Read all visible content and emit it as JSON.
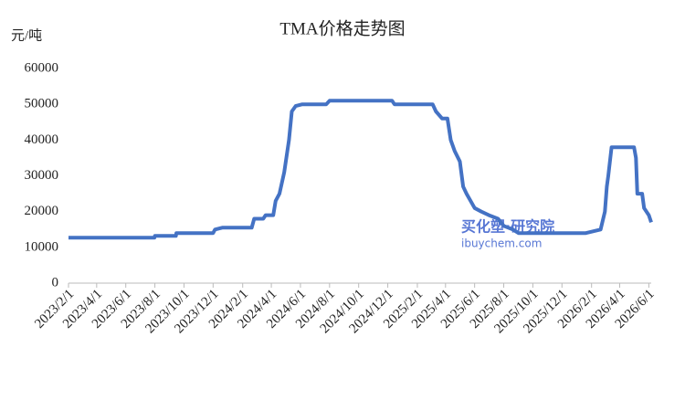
{
  "chart_data": {
    "type": "line",
    "title": "TMA价格走势图",
    "y_label": "元/吨",
    "watermark": [
      "买化塑·研究院",
      "ibuychem.com"
    ],
    "x": [
      "2023/2/1",
      "2023/7/31",
      "2023/8/1",
      "2023/9/14",
      "2023/9/15",
      "2023/12/1",
      "2023/12/5",
      "2023/12/20",
      "2024/2/20",
      "2024/2/25",
      "2024/3/15",
      "2024/3/20",
      "2024/4/5",
      "2024/4/10",
      "2024/4/18",
      "2024/4/28",
      "2024/5/8",
      "2024/5/14",
      "2024/5/22",
      "2024/6/5",
      "2024/7/25",
      "2024/8/1",
      "2024/12/10",
      "2024/12/15",
      "2025/3/5",
      "2025/3/12",
      "2025/3/25",
      "2025/4/5",
      "2025/4/12",
      "2025/4/20",
      "2025/5/1",
      "2025/5/8",
      "2025/5/15",
      "2025/6/1",
      "2025/6/15",
      "2025/7/1",
      "2025/7/20",
      "2025/8/1",
      "2025/8/20",
      "2025/9/1",
      "2026/1/20",
      "2026/2/20",
      "2026/3/1",
      "2026/3/5",
      "2026/3/8",
      "2026/3/15",
      "2026/5/1",
      "2026/5/5",
      "2026/5/8",
      "2026/5/18",
      "2026/5/22",
      "2026/6/1",
      "2026/6/6"
    ],
    "series": [
      {
        "name": "TMA",
        "color": "#4472c4",
        "values": [
          12700,
          12700,
          13200,
          13200,
          14000,
          14000,
          15000,
          15500,
          15500,
          18000,
          18000,
          19000,
          19000,
          23000,
          25000,
          31000,
          40000,
          48000,
          49500,
          50000,
          50000,
          51000,
          51000,
          50000,
          50000,
          48000,
          46000,
          46000,
          40000,
          37000,
          34000,
          27000,
          25000,
          21000,
          20000,
          19000,
          18000,
          16000,
          15000,
          14000,
          14000,
          15000,
          20000,
          27000,
          30000,
          38000,
          38000,
          35000,
          25000,
          25000,
          21000,
          19000,
          17000
        ]
      }
    ],
    "xlim": [
      "2023/2/1",
      "2026/6/6"
    ],
    "xticks": [
      "2023/2/1",
      "2023/4/1",
      "2023/6/1",
      "2023/8/1",
      "2023/10/1",
      "2023/12/1",
      "2024/2/1",
      "2024/4/1",
      "2024/6/1",
      "2024/8/1",
      "2024/10/1",
      "2024/12/1",
      "2025/2/1",
      "2025/4/1",
      "2025/6/1",
      "2025/8/1",
      "2025/10/1",
      "2025/12/1",
      "2026/2/1",
      "2026/4/1",
      "2026/6/1"
    ],
    "ylim": [
      0,
      60000
    ],
    "yticks": [
      0,
      10000,
      20000,
      30000,
      40000,
      50000,
      60000
    ],
    "grid": false
  }
}
